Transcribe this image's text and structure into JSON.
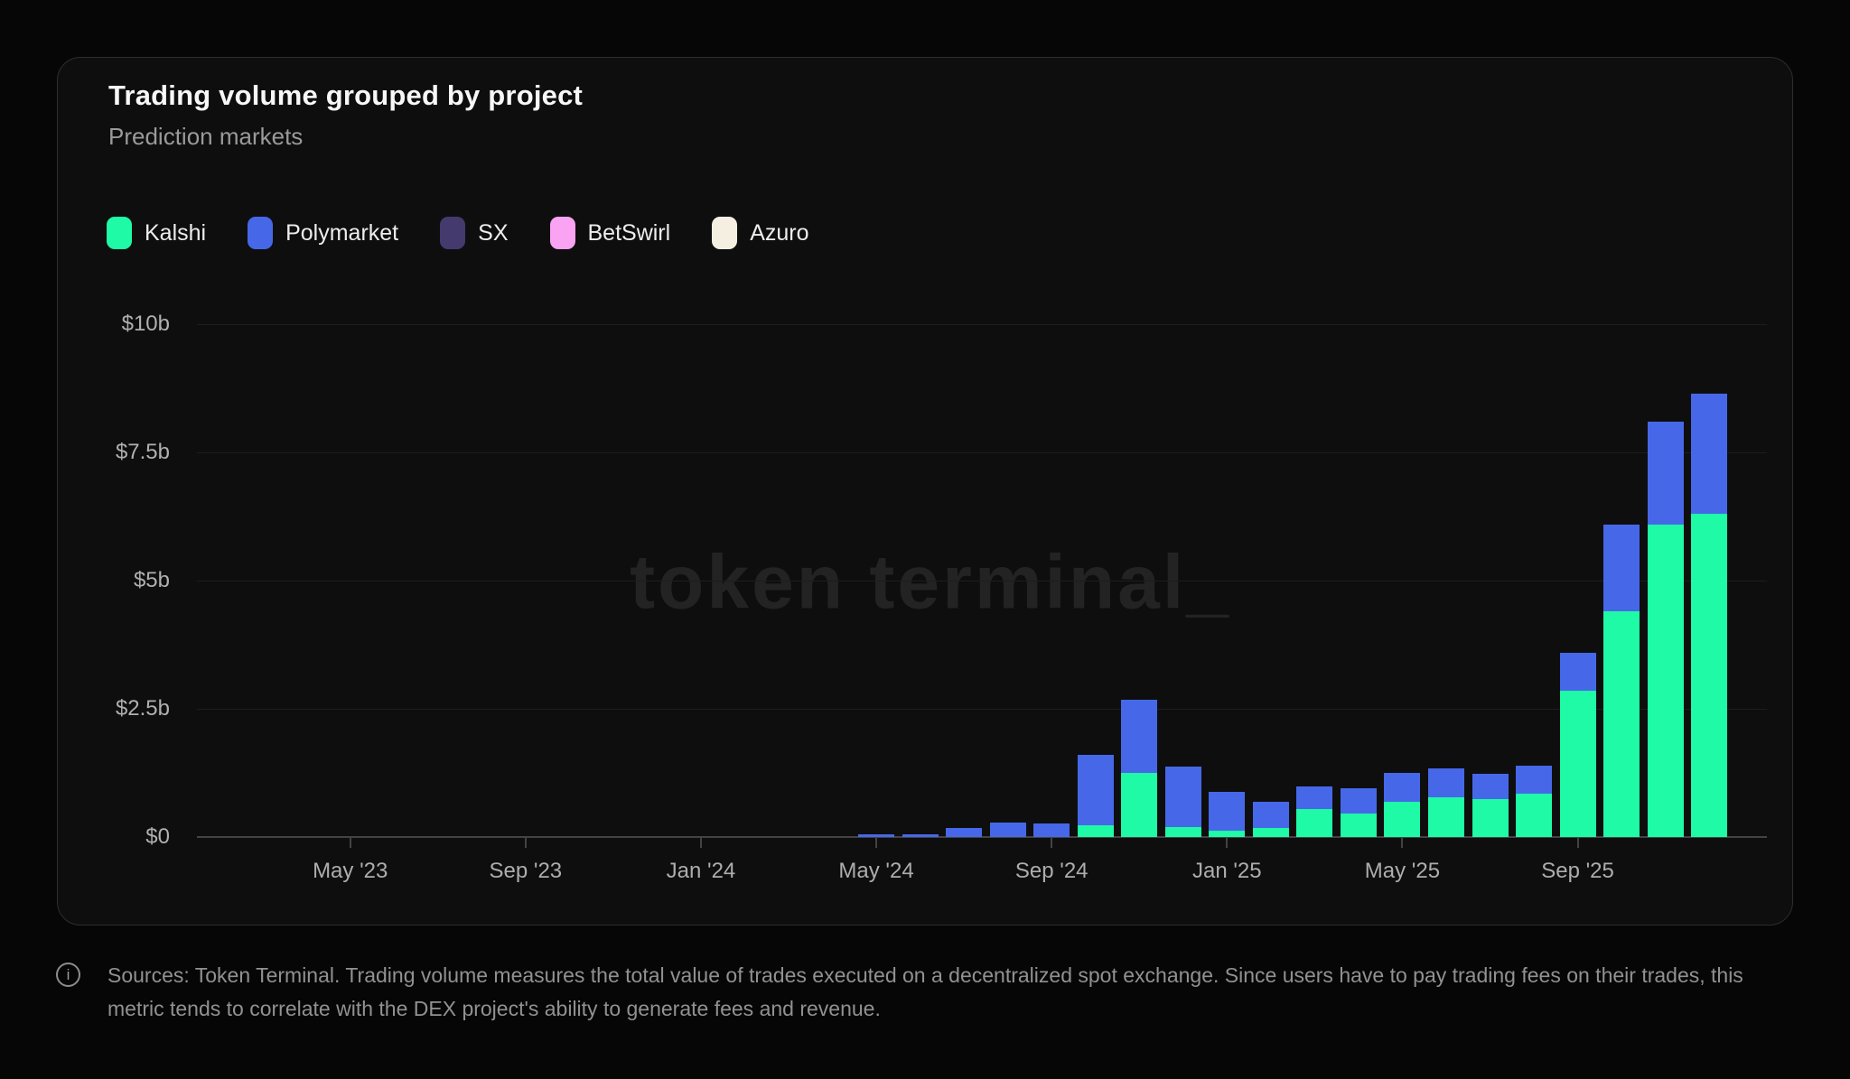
{
  "card": {
    "title": "Trading volume grouped by project",
    "subtitle": "Prediction markets"
  },
  "legend": [
    {
      "label": "Kalshi",
      "color": "#1efaa5"
    },
    {
      "label": "Polymarket",
      "color": "#4668e8"
    },
    {
      "label": "SX",
      "color": "#453a6e"
    },
    {
      "label": "BetSwirl",
      "color": "#f9a3f2"
    },
    {
      "label": "Azuro",
      "color": "#f4efe0"
    }
  ],
  "watermark": "token terminal_",
  "footer": {
    "icon": "info-icon",
    "text": "Sources: Token Terminal. Trading volume measures the total value of trades executed on a decentralized spot exchange. Since users have to pay trading fees on their trades, this metric tends to correlate with the DEX project's ability to generate fees and revenue."
  },
  "chart_data": {
    "type": "bar",
    "stacked": true,
    "title": "Trading volume grouped by project",
    "subtitle": "Prediction markets",
    "unit": "USD billions",
    "ylim": [
      0,
      10
    ],
    "grid": true,
    "legend_position": "top-left",
    "ytick_values": [
      0,
      2.5,
      5,
      7.5,
      10
    ],
    "ytick_labels": [
      "$0",
      "$2.5b",
      "$5b",
      "$7.5b",
      "$10b"
    ],
    "xtick_labels": [
      "May '23",
      "Sep '23",
      "Jan '24",
      "May '24",
      "Sep '24",
      "Jan '25",
      "May '25",
      "Sep '25"
    ],
    "xtick_month_indices": [
      4,
      8,
      12,
      16,
      20,
      24,
      28,
      32
    ],
    "months": [
      "Jan '23",
      "Feb '23",
      "Mar '23",
      "Apr '23",
      "May '23",
      "Jun '23",
      "Jul '23",
      "Aug '23",
      "Sep '23",
      "Oct '23",
      "Nov '23",
      "Dec '23",
      "Jan '24",
      "Feb '24",
      "Mar '24",
      "Apr '24",
      "May '24",
      "Jun '24",
      "Jul '24",
      "Aug '24",
      "Sep '24",
      "Oct '24",
      "Nov '24",
      "Dec '24",
      "Jan '25",
      "Feb '25",
      "Mar '25",
      "Apr '25",
      "May '25",
      "Jun '25",
      "Jul '25",
      "Aug '25",
      "Sep '25",
      "Oct '25",
      "Nov '25",
      "Dec '25"
    ],
    "series": [
      {
        "name": "Kalshi",
        "color": "#1efaa5",
        "values": [
          0,
          0,
          0,
          0,
          0,
          0,
          0,
          0,
          0,
          0,
          0,
          0,
          0,
          0,
          0,
          0,
          0,
          0,
          0,
          0,
          0,
          0.23,
          1.25,
          0.2,
          0.12,
          0.18,
          0.55,
          0.45,
          0.68,
          0.78,
          0.74,
          0.85,
          2.85,
          4.4,
          6.1,
          6.3
        ]
      },
      {
        "name": "Polymarket",
        "color": "#4668e8",
        "values": [
          0,
          0,
          0,
          0,
          0,
          0,
          0,
          0,
          0,
          0,
          0,
          0,
          0,
          0,
          0,
          0,
          0.05,
          0.05,
          0.18,
          0.28,
          0.27,
          1.37,
          1.42,
          1.17,
          0.76,
          0.5,
          0.44,
          0.5,
          0.57,
          0.56,
          0.5,
          0.54,
          0.75,
          1.7,
          2.0,
          2.35
        ]
      },
      {
        "name": "SX",
        "color": "#453a6e",
        "values": [
          0,
          0,
          0,
          0,
          0,
          0,
          0,
          0,
          0,
          0,
          0,
          0,
          0,
          0,
          0,
          0,
          0,
          0,
          0,
          0,
          0,
          0,
          0,
          0,
          0,
          0,
          0,
          0,
          0,
          0,
          0,
          0,
          0,
          0,
          0,
          0
        ]
      },
      {
        "name": "BetSwirl",
        "color": "#f9a3f2",
        "values": [
          0,
          0,
          0,
          0,
          0,
          0,
          0,
          0,
          0,
          0,
          0,
          0,
          0,
          0,
          0,
          0,
          0,
          0,
          0,
          0,
          0,
          0,
          0,
          0,
          0,
          0,
          0,
          0,
          0,
          0,
          0,
          0,
          0,
          0,
          0,
          0
        ]
      },
      {
        "name": "Azuro",
        "color": "#f4efe0",
        "values": [
          0,
          0,
          0,
          0,
          0,
          0,
          0,
          0,
          0,
          0,
          0,
          0,
          0,
          0,
          0,
          0,
          0,
          0,
          0,
          0,
          0,
          0,
          0,
          0,
          0,
          0,
          0,
          0,
          0,
          0,
          0,
          0,
          0,
          0,
          0,
          0
        ]
      }
    ]
  }
}
